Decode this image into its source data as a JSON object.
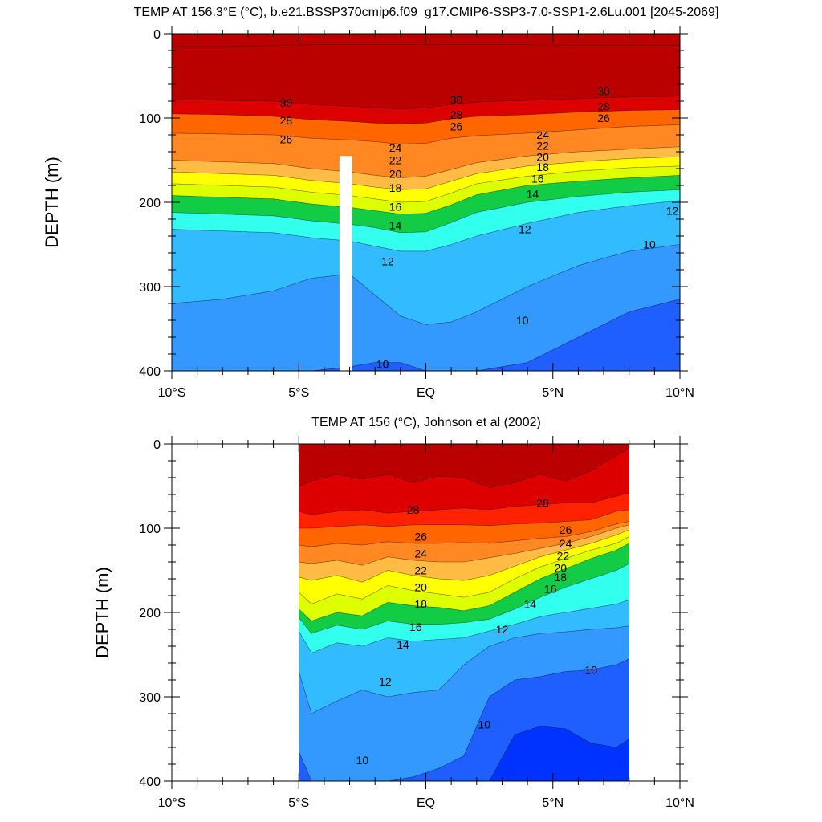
{
  "figure": {
    "colormap": [
      "#0033ff",
      "#1f5fff",
      "#2a7bff",
      "#3399ff",
      "#33bbff",
      "#22ddff",
      "#33ffee",
      "#33ff99",
      "#11cc44",
      "#99dd22",
      "#ddff00",
      "#ffff00",
      "#ffdd22",
      "#ffbb44",
      "#ffaa33",
      "#ff8822",
      "#ff6600",
      "#ff2200",
      "#dd0000",
      "#bb0000"
    ]
  },
  "chart_data": [
    {
      "type": "contour",
      "title": "TEMP AT 156.3°E (°C), b.e21.BSSP370cmip6.f09_g17.CMIP6-SSP3-7.0-SSP1-2.6Lu.001 [2045-2069]",
      "xlabel": "",
      "ylabel": "DEPTH (m)",
      "x_ticks": [
        "10°S",
        "5°S",
        "EQ",
        "5°N",
        "10°N"
      ],
      "x_tick_values": [
        -10,
        -5,
        0,
        5,
        10
      ],
      "y_ticks": [
        "0",
        "100",
        "200",
        "300",
        "400"
      ],
      "y_tick_values": [
        0,
        100,
        200,
        300,
        400
      ],
      "xlim": [
        -10,
        10
      ],
      "ylim": [
        400,
        0
      ],
      "data_lat_range": [
        -10,
        10
      ],
      "missing_column_lat": [
        -3.4,
        -2.9
      ],
      "missing_column_depth": [
        145,
        400
      ],
      "x_profile": [
        -10,
        -8,
        -6,
        -4.5,
        -3,
        -2,
        -1,
        0,
        1,
        2,
        4,
        6,
        8,
        10
      ],
      "isotherms": [
        {
          "t": 31,
          "depth": [
            15,
            15,
            14,
            13,
            13,
            13,
            13,
            13,
            13,
            13,
            13,
            14,
            14,
            14
          ]
        },
        {
          "t": 30,
          "depth": [
            78,
            79,
            80,
            84,
            86,
            88,
            89,
            88,
            84,
            81,
            79,
            77,
            75,
            74
          ]
        },
        {
          "t": 28,
          "depth": [
            95,
            96,
            98,
            102,
            104,
            106,
            107,
            106,
            101,
            98,
            96,
            93,
            91,
            90
          ]
        },
        {
          "t": 26,
          "depth": [
            118,
            119,
            120,
            124,
            126,
            128,
            131,
            130,
            124,
            121,
            118,
            114,
            110,
            108
          ]
        },
        {
          "t": 24,
          "depth": [
            150,
            152,
            154,
            160,
            164,
            168,
            171,
            169,
            161,
            153,
            145,
            140,
            137,
            134
          ]
        },
        {
          "t": 22,
          "depth": [
            164,
            166,
            168,
            174,
            178,
            182,
            185,
            184,
            175,
            166,
            157,
            152,
            148,
            146
          ]
        },
        {
          "t": 20,
          "depth": [
            178,
            180,
            182,
            188,
            192,
            196,
            200,
            199,
            189,
            178,
            169,
            163,
            159,
            157
          ]
        },
        {
          "t": 18,
          "depth": [
            192,
            194,
            196,
            202,
            206,
            210,
            214,
            213,
            203,
            191,
            180,
            175,
            171,
            168
          ]
        },
        {
          "t": 16,
          "depth": [
            212,
            214,
            216,
            222,
            226,
            230,
            236,
            235,
            224,
            212,
            200,
            193,
            188,
            185
          ]
        },
        {
          "t": 14,
          "depth": [
            232,
            234,
            236,
            242,
            246,
            252,
            258,
            258,
            250,
            240,
            225,
            212,
            204,
            198
          ]
        },
        {
          "t": 12,
          "depth": [
            320,
            315,
            305,
            290,
            285,
            310,
            335,
            345,
            342,
            330,
            300,
            275,
            258,
            250
          ]
        },
        {
          "t": 10,
          "depth": [
            400,
            400,
            400,
            400,
            395,
            390,
            390,
            400,
            400,
            400,
            390,
            360,
            330,
            315
          ]
        }
      ],
      "contour_labels": [
        {
          "text": "30",
          "lat": -5.5,
          "depth": 82
        },
        {
          "text": "28",
          "lat": -5.5,
          "depth": 103
        },
        {
          "text": "26",
          "lat": -5.5,
          "depth": 125
        },
        {
          "text": "30",
          "lat": 1.2,
          "depth": 78
        },
        {
          "text": "28",
          "lat": 1.2,
          "depth": 96
        },
        {
          "text": "26",
          "lat": 1.2,
          "depth": 110
        },
        {
          "text": "30",
          "lat": 7,
          "depth": 68
        },
        {
          "text": "28",
          "lat": 7,
          "depth": 86
        },
        {
          "text": "26",
          "lat": 7,
          "depth": 100
        },
        {
          "text": "24",
          "lat": -1.2,
          "depth": 135
        },
        {
          "text": "22",
          "lat": -1.2,
          "depth": 150
        },
        {
          "text": "20",
          "lat": -1.2,
          "depth": 166
        },
        {
          "text": "18",
          "lat": -1.2,
          "depth": 183
        },
        {
          "text": "16",
          "lat": -1.2,
          "depth": 205
        },
        {
          "text": "14",
          "lat": -1.2,
          "depth": 227
        },
        {
          "text": "12",
          "lat": -1.5,
          "depth": 270
        },
        {
          "text": "24",
          "lat": 4.6,
          "depth": 120
        },
        {
          "text": "22",
          "lat": 4.6,
          "depth": 133
        },
        {
          "text": "20",
          "lat": 4.6,
          "depth": 146
        },
        {
          "text": "18",
          "lat": 4.6,
          "depth": 158
        },
        {
          "text": "16",
          "lat": 4.4,
          "depth": 172
        },
        {
          "text": "14",
          "lat": 4.2,
          "depth": 190
        },
        {
          "text": "12",
          "lat": 3.9,
          "depth": 232
        },
        {
          "text": "12",
          "lat": 9.7,
          "depth": 210
        },
        {
          "text": "10",
          "lat": 8.8,
          "depth": 250
        },
        {
          "text": "10",
          "lat": 3.8,
          "depth": 340
        },
        {
          "text": "10",
          "lat": -1.7,
          "depth": 392
        }
      ]
    },
    {
      "type": "contour",
      "title": "TEMP AT 156 (°C), Johnson et al (2002)",
      "xlabel": "",
      "ylabel": "DEPTH (m)",
      "x_ticks": [
        "10°S",
        "5°S",
        "EQ",
        "5°N",
        "10°N"
      ],
      "x_tick_values": [
        -10,
        -5,
        0,
        5,
        10
      ],
      "y_ticks": [
        "0",
        "100",
        "200",
        "300",
        "400"
      ],
      "y_tick_values": [
        0,
        100,
        200,
        300,
        400
      ],
      "xlim": [
        -10,
        10
      ],
      "ylim": [
        400,
        0
      ],
      "data_lat_range": [
        -5,
        8
      ],
      "x_profile": [
        -5,
        -4.5,
        -3.5,
        -2.5,
        -1.5,
        -0.5,
        0.5,
        1.5,
        2.5,
        3.5,
        4.5,
        5.5,
        6.5,
        7.5,
        8
      ],
      "isotherms": [
        {
          "t": 30,
          "depth": [
            50,
            44,
            36,
            42,
            36,
            46,
            38,
            40,
            52,
            46,
            36,
            44,
            32,
            14,
            5
          ]
        },
        {
          "t": 29,
          "depth": [
            80,
            84,
            80,
            78,
            82,
            80,
            78,
            76,
            78,
            74,
            72,
            70,
            70,
            62,
            58
          ]
        },
        {
          "t": 28,
          "depth": [
            100,
            100,
            98,
            96,
            98,
            96,
            96,
            96,
            97,
            95,
            94,
            92,
            90,
            80,
            78
          ]
        },
        {
          "t": 26,
          "depth": [
            120,
            122,
            118,
            120,
            116,
            118,
            118,
            117,
            118,
            115,
            112,
            110,
            104,
            95,
            92
          ]
        },
        {
          "t": 24,
          "depth": [
            140,
            142,
            138,
            144,
            134,
            138,
            140,
            140,
            135,
            130,
            124,
            118,
            110,
            100,
            96
          ]
        },
        {
          "t": 22,
          "depth": [
            158,
            162,
            156,
            164,
            150,
            156,
            160,
            162,
            156,
            145,
            134,
            126,
            118,
            108,
            102
          ]
        },
        {
          "t": 20,
          "depth": [
            176,
            190,
            178,
            184,
            168,
            174,
            178,
            182,
            176,
            160,
            146,
            136,
            126,
            118,
            110
          ]
        },
        {
          "t": 18,
          "depth": [
            196,
            210,
            200,
            204,
            188,
            192,
            194,
            198,
            192,
            176,
            160,
            148,
            136,
            126,
            118
          ]
        },
        {
          "t": 16,
          "depth": [
            206,
            225,
            215,
            220,
            210,
            214,
            214,
            212,
            208,
            196,
            182,
            170,
            160,
            150,
            142
          ]
        },
        {
          "t": 14,
          "depth": [
            222,
            248,
            236,
            240,
            230,
            234,
            232,
            230,
            222,
            214,
            205,
            200,
            195,
            190,
            185
          ]
        },
        {
          "t": 12,
          "depth": [
            270,
            320,
            305,
            292,
            300,
            295,
            292,
            262,
            240,
            230,
            225,
            223,
            220,
            218,
            216
          ]
        },
        {
          "t": 10,
          "depth": [
            365,
            400,
            400,
            400,
            400,
            395,
            385,
            370,
            300,
            280,
            276,
            270,
            268,
            262,
            255
          ]
        },
        {
          "t": 9,
          "depth": [
            400,
            400,
            400,
            400,
            400,
            400,
            400,
            400,
            400,
            345,
            335,
            338,
            355,
            360,
            350
          ]
        }
      ],
      "contour_labels": [
        {
          "text": "28",
          "lat": -0.5,
          "depth": 78
        },
        {
          "text": "28",
          "lat": 4.6,
          "depth": 70
        },
        {
          "text": "26",
          "lat": -0.2,
          "depth": 110
        },
        {
          "text": "24",
          "lat": -0.2,
          "depth": 130
        },
        {
          "text": "22",
          "lat": -0.2,
          "depth": 150
        },
        {
          "text": "20",
          "lat": -0.2,
          "depth": 170
        },
        {
          "text": "18",
          "lat": -0.2,
          "depth": 190
        },
        {
          "text": "16",
          "lat": -0.4,
          "depth": 217
        },
        {
          "text": "14",
          "lat": -0.9,
          "depth": 238
        },
        {
          "text": "12",
          "lat": -1.6,
          "depth": 282
        },
        {
          "text": "26",
          "lat": 5.5,
          "depth": 102
        },
        {
          "text": "24",
          "lat": 5.5,
          "depth": 118
        },
        {
          "text": "22",
          "lat": 5.4,
          "depth": 133
        },
        {
          "text": "20",
          "lat": 5.3,
          "depth": 147
        },
        {
          "text": "18",
          "lat": 5.3,
          "depth": 158
        },
        {
          "text": "16",
          "lat": 4.9,
          "depth": 172
        },
        {
          "text": "14",
          "lat": 4.1,
          "depth": 190
        },
        {
          "text": "12",
          "lat": 3.0,
          "depth": 220
        },
        {
          "text": "10",
          "lat": 6.5,
          "depth": 268
        },
        {
          "text": "10",
          "lat": 2.3,
          "depth": 333
        },
        {
          "text": "10",
          "lat": -2.5,
          "depth": 375
        }
      ]
    }
  ]
}
